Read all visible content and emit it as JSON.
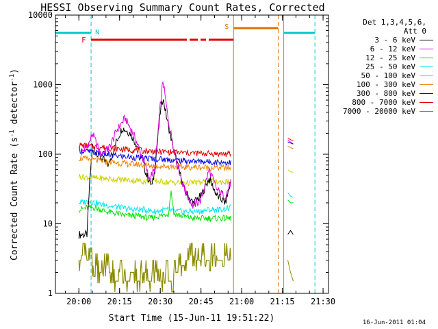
{
  "chart_data": {
    "type": "line",
    "title": "HESSI Observing Summary Count Rates, Corrected",
    "xlabel": "Start Time (15-Jun-11 19:51:22)",
    "ylabel": "Corrected Count Rate (s-1 detector-1)",
    "ylabel_parts": {
      "main": "Corrected Count Rate (s",
      "sup1": "-1",
      "mid": " detector",
      "sup2": "-1",
      "end": ")"
    },
    "yscale": "log",
    "ylim": [
      1,
      10000
    ],
    "xlim": [
      "19:51:22",
      "21:32:00"
    ],
    "x_ticks": [
      "20:00",
      "20:15",
      "20:30",
      "20:45",
      "21:00",
      "21:15",
      "21:30"
    ],
    "y_ticks": [
      "1",
      "10",
      "100",
      "1000",
      "10000"
    ],
    "legend": {
      "header": [
        "Det 1,3,4,5,6,",
        "Att 0"
      ],
      "placement": "right"
    },
    "series": [
      {
        "name": "3 - 6 keV",
        "color": "#000000",
        "x": [
          "20:00",
          "20:03",
          "20:04",
          "20:05",
          "20:08",
          "20:11",
          "20:14",
          "20:16",
          "20:19",
          "20:22",
          "20:25",
          "20:27",
          "20:28",
          "20:30",
          "20:31",
          "20:33",
          "20:36",
          "20:39",
          "20:42",
          "20:45",
          "20:48",
          "20:51",
          "20:54",
          "20:56"
        ],
        "values": [
          7,
          7,
          40,
          130,
          90,
          70,
          160,
          240,
          200,
          120,
          50,
          35,
          60,
          400,
          650,
          250,
          80,
          30,
          20,
          25,
          45,
          25,
          20,
          40
        ]
      },
      {
        "name": "6 - 12 keV",
        "color": "#e000e0",
        "x": [
          "20:01",
          "20:04",
          "20:05",
          "20:08",
          "20:11",
          "20:14",
          "20:17",
          "20:20",
          "20:23",
          "20:26",
          "20:28",
          "20:30",
          "20:31",
          "20:33",
          "20:36",
          "20:39",
          "20:42",
          "20:45",
          "20:48",
          "20:51",
          "20:54",
          "20:56"
        ],
        "values": [
          105,
          150,
          200,
          100,
          120,
          220,
          330,
          200,
          100,
          45,
          60,
          500,
          1150,
          300,
          80,
          30,
          18,
          22,
          60,
          30,
          25,
          40
        ]
      },
      {
        "name": "12 - 25 keV",
        "color": "#00e000",
        "x": [
          "20:00",
          "20:03",
          "20:06",
          "20:10",
          "20:14",
          "20:18",
          "20:22",
          "20:26",
          "20:30",
          "20:33",
          "20:34",
          "20:35",
          "20:38",
          "20:42",
          "20:46",
          "20:50",
          "20:54",
          "20:56"
        ],
        "values": [
          16,
          17,
          17,
          15,
          14,
          13,
          13,
          12,
          13,
          14,
          30,
          14,
          13,
          12,
          12,
          12,
          12,
          12
        ]
      },
      {
        "name": "25 - 50 keV",
        "color": "#00e8e8",
        "x": [
          "20:00",
          "20:04",
          "20:08",
          "20:12",
          "20:16",
          "20:20",
          "20:24",
          "20:28",
          "20:32",
          "20:36",
          "20:40",
          "20:44",
          "20:48",
          "20:52",
          "20:56"
        ],
        "values": [
          20,
          21,
          19,
          18,
          17,
          16,
          16,
          15,
          16,
          15,
          15,
          15,
          16,
          16,
          17
        ]
      },
      {
        "name": "50 - 100 keV",
        "color": "#d0d000",
        "x": [
          "20:00",
          "20:04",
          "20:08",
          "20:12",
          "20:16",
          "20:20",
          "20:24",
          "20:28",
          "20:32",
          "20:36",
          "20:40",
          "20:44",
          "20:48",
          "20:52",
          "20:56"
        ],
        "values": [
          48,
          46,
          45,
          44,
          43,
          42,
          41,
          41,
          40,
          39,
          39,
          39,
          40,
          40,
          40
        ]
      },
      {
        "name": "100 - 300 keV",
        "color": "#f08000",
        "x": [
          "20:00",
          "20:04",
          "20:08",
          "20:12",
          "20:16",
          "20:20",
          "20:24",
          "20:28",
          "20:32",
          "20:36",
          "20:40",
          "20:44",
          "20:48",
          "20:52",
          "20:56"
        ],
        "values": [
          88,
          84,
          80,
          77,
          74,
          72,
          70,
          68,
          67,
          66,
          65,
          65,
          64,
          64,
          63
        ]
      },
      {
        "name": "300 - 800 keV",
        "color": "#0000f0",
        "x": [
          "20:00",
          "20:04",
          "20:08",
          "20:12",
          "20:16",
          "20:20",
          "20:24",
          "20:28",
          "20:32",
          "20:36",
          "20:40",
          "20:44",
          "20:48",
          "20:52",
          "20:56"
        ],
        "values": [
          115,
          108,
          102,
          97,
          93,
          90,
          88,
          86,
          84,
          82,
          80,
          79,
          78,
          77,
          76
        ]
      },
      {
        "name": "800 - 7000 keV",
        "color": "#e00000",
        "x": [
          "20:00",
          "20:04",
          "20:08",
          "20:12",
          "20:16",
          "20:20",
          "20:24",
          "20:28",
          "20:32",
          "20:36",
          "20:40",
          "20:44",
          "20:48",
          "20:52",
          "20:56"
        ],
        "values": [
          135,
          130,
          126,
          122,
          118,
          115,
          112,
          110,
          108,
          106,
          104,
          103,
          102,
          101,
          100
        ]
      },
      {
        "name": "7000 - 20000 keV",
        "color": "#8b8b00",
        "x": [
          "20:00",
          "20:02",
          "20:04",
          "20:06",
          "20:08",
          "20:10",
          "20:12",
          "20:14",
          "20:16",
          "20:18",
          "20:20",
          "20:22",
          "20:24",
          "20:26",
          "20:28",
          "20:30",
          "20:32",
          "20:34",
          "20:36",
          "20:38",
          "20:40",
          "20:42",
          "20:44",
          "20:46",
          "20:48",
          "20:50",
          "20:52",
          "20:54",
          "20:56"
        ],
        "values": [
          3,
          3.5,
          3,
          2.5,
          2,
          2.5,
          2,
          1.5,
          2,
          1.5,
          2,
          1.5,
          2,
          1.5,
          2,
          1.5,
          2,
          1.5,
          2,
          2.5,
          3,
          3.5,
          3,
          3.5,
          3,
          3.5,
          3,
          3.5,
          3
        ]
      }
    ],
    "second_interval": {
      "x_start": "21:17",
      "x_end": "21:19",
      "values": [
        {
          "band": "3 - 6 keV",
          "values": [
            7,
            8,
            7
          ]
        },
        {
          "band": "6 - 12 keV",
          "values": [
            160,
            150,
            140
          ]
        },
        {
          "band": "12 - 25 keV",
          "values": [
            22,
            20,
            20
          ]
        },
        {
          "band": "25 - 50 keV",
          "values": [
            28,
            25,
            24
          ]
        },
        {
          "band": "50 - 100 keV",
          "values": [
            60,
            56,
            55
          ]
        },
        {
          "band": "100 - 300 keV",
          "values": [
            130,
            125,
            120
          ]
        },
        {
          "band": "300 - 800 keV",
          "values": [
            150,
            145,
            140
          ]
        },
        {
          "band": "800 - 7000 keV",
          "values": [
            170,
            162,
            155
          ]
        },
        {
          "band": "7000 - 20000 keV",
          "values": [
            3,
            2,
            1.5
          ]
        }
      ]
    },
    "annotations": [
      {
        "label": "N",
        "color": "#00c8c8",
        "type": "night",
        "x_ranges": [
          [
            "19:51:22",
            "20:04:30"
          ],
          [
            "21:15:30",
            "21:27:00"
          ]
        ]
      },
      {
        "label": "F",
        "color": "#e00000",
        "type": "flare"
      },
      {
        "label": "S",
        "color": "#e07000",
        "type": "saa",
        "x_range": [
          "20:57:00",
          "21:13:30"
        ]
      }
    ],
    "vertical_markers": [
      {
        "x": "20:04:30",
        "color": "#00c8c8",
        "style": "dashed"
      },
      {
        "x": "20:57:00",
        "color": "#d08000",
        "style": "solid"
      },
      {
        "x": "21:13:30",
        "color": "#e07000",
        "style": "dashed"
      },
      {
        "x": "21:15:30",
        "color": "#00c8c8",
        "style": "solid"
      },
      {
        "x": "21:27:00",
        "color": "#00c8c8",
        "style": "dashed"
      }
    ],
    "footer": "16-Jun-2011 01:04"
  }
}
